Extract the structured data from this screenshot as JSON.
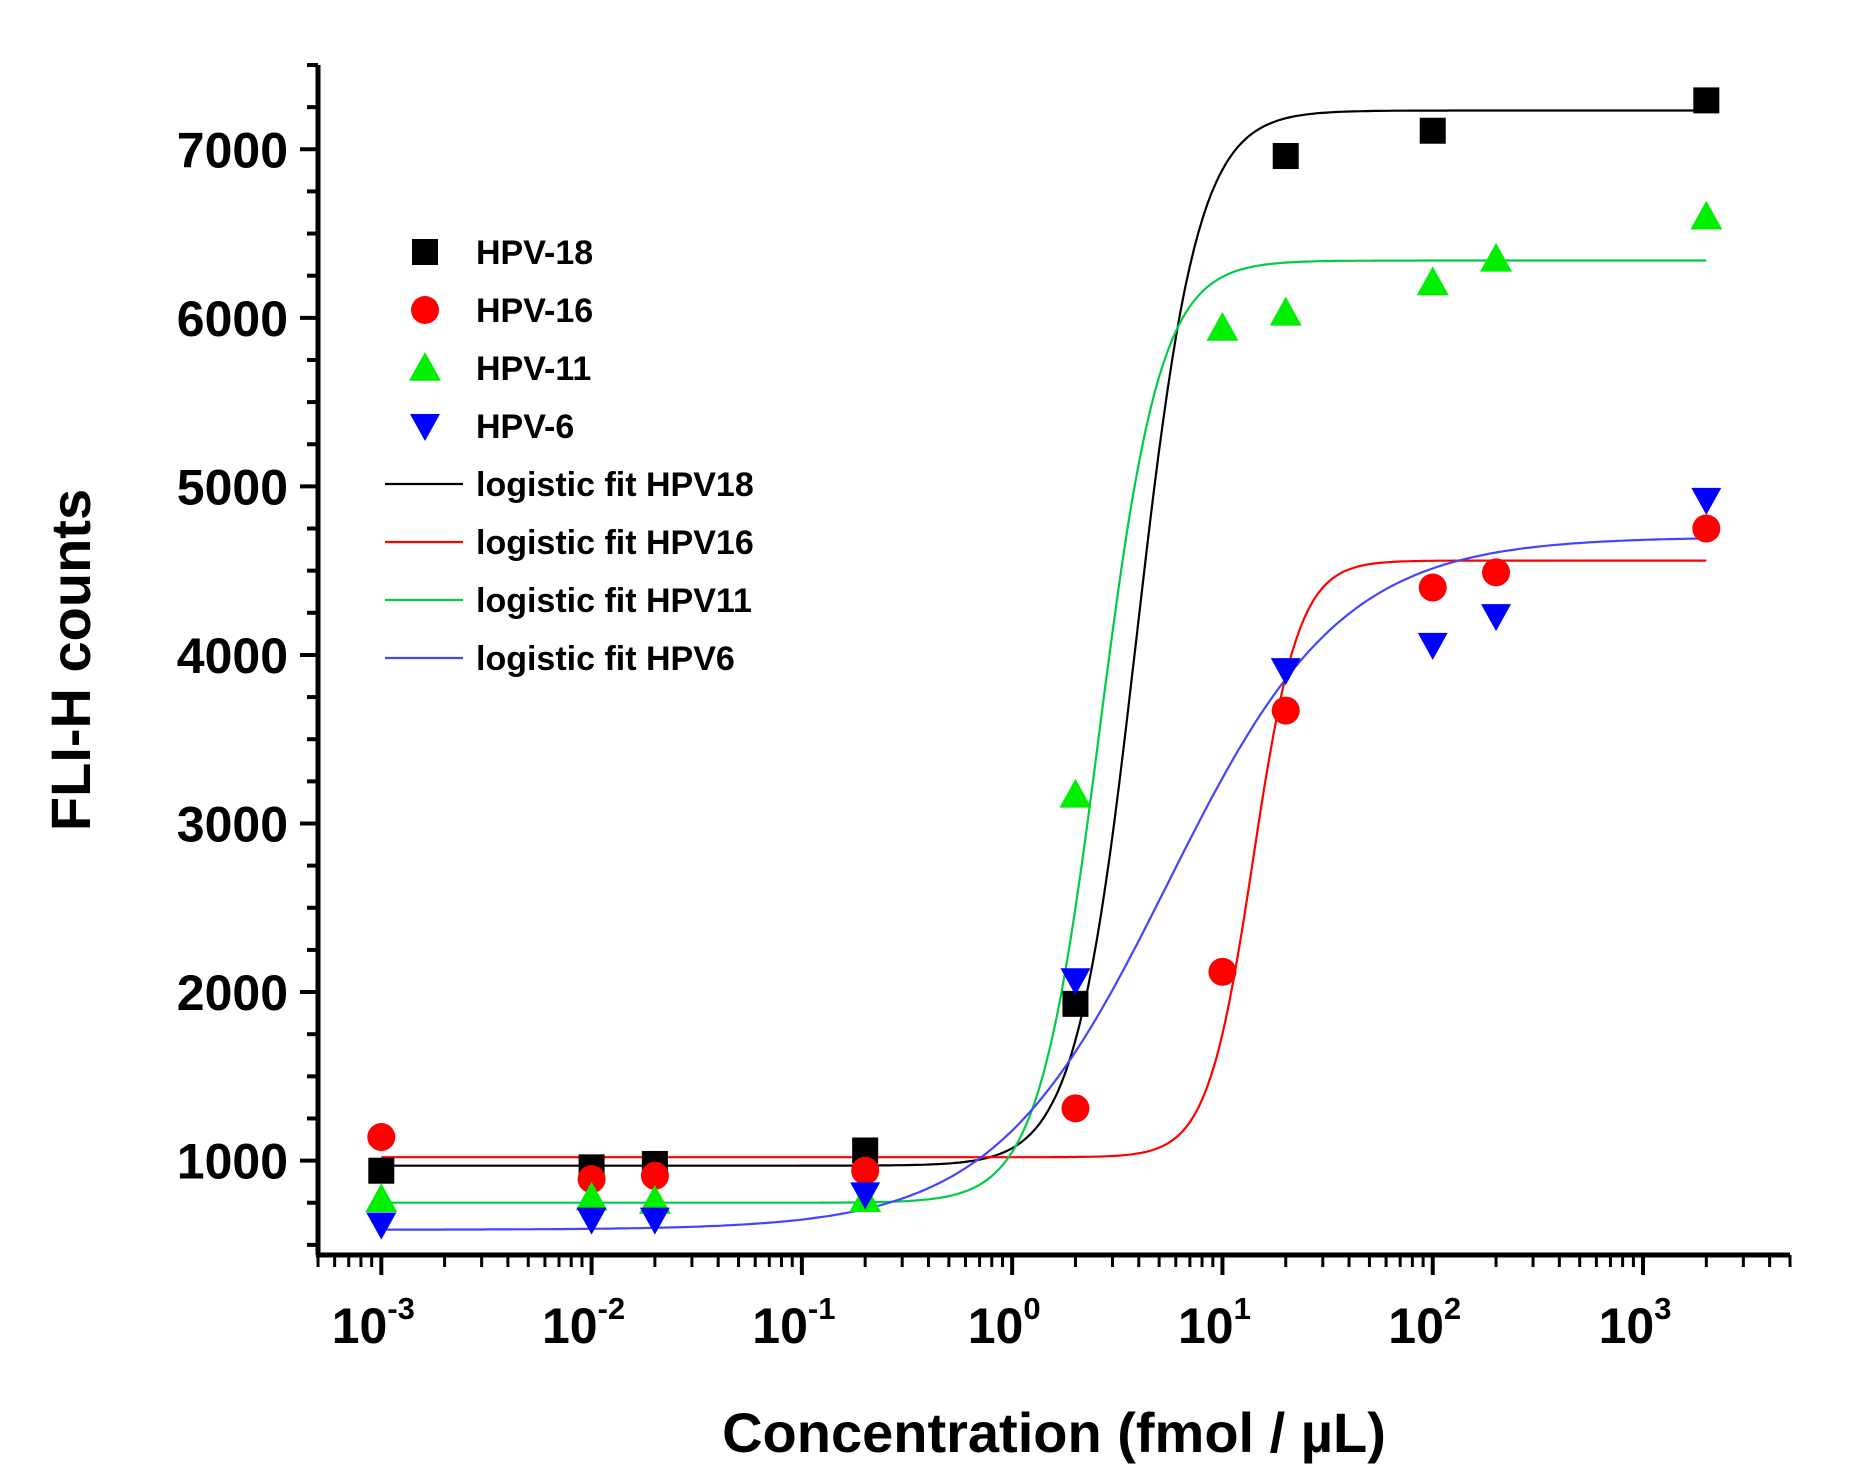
{
  "chart_data": {
    "type": "scatter",
    "title": "",
    "xlabel": "Concentration (fmol / µL)",
    "ylabel": "FLI-H counts",
    "xscale": "log",
    "xlim": [
      0.0005,
      5000
    ],
    "ylim": [
      440,
      7500
    ],
    "x_tick_labels": [
      {
        "base": "10",
        "exp": "-3",
        "value": 0.001
      },
      {
        "base": "10",
        "exp": "-2",
        "value": 0.01
      },
      {
        "base": "10",
        "exp": "-1",
        "value": 0.1
      },
      {
        "base": "10",
        "exp": "0",
        "value": 1
      },
      {
        "base": "10",
        "exp": "1",
        "value": 10
      },
      {
        "base": "10",
        "exp": "2",
        "value": 100
      },
      {
        "base": "10",
        "exp": "3",
        "value": 1000
      }
    ],
    "y_tick_labels": [
      "1000",
      "2000",
      "3000",
      "4000",
      "5000",
      "6000",
      "7000"
    ],
    "y_ticks": [
      1000,
      2000,
      3000,
      4000,
      5000,
      6000,
      7000
    ],
    "legend_position": "upper-left",
    "series": [
      {
        "name": "HPV-18",
        "marker": "square",
        "color": "#000000",
        "x": [
          0.001,
          0.01,
          0.02,
          0.2,
          2,
          20,
          100,
          2000
        ],
        "y": [
          940,
          960,
          980,
          1060,
          1930,
          6960,
          7110,
          7290
        ]
      },
      {
        "name": "HPV-16",
        "marker": "circle",
        "color": "#ff0000",
        "x": [
          0.001,
          0.01,
          0.02,
          0.2,
          2,
          10,
          20,
          100,
          200,
          2000
        ],
        "y": [
          1140,
          890,
          910,
          940,
          1310,
          2120,
          3670,
          4400,
          4490,
          4750
        ]
      },
      {
        "name": "HPV-11",
        "marker": "triangle-up",
        "color": "#00ee00",
        "x": [
          0.001,
          0.01,
          0.02,
          0.2,
          2,
          10,
          20,
          100,
          200,
          2000
        ],
        "y": [
          770,
          780,
          760,
          770,
          3170,
          5940,
          6030,
          6210,
          6350,
          6600
        ]
      },
      {
        "name": "HPV-6",
        "marker": "triangle-down",
        "color": "#0000ff",
        "x": [
          0.001,
          0.01,
          0.02,
          0.2,
          2,
          20,
          100,
          200,
          2000
        ],
        "y": [
          620,
          650,
          650,
          800,
          2070,
          3910,
          4060,
          4230,
          4920
        ]
      }
    ],
    "fits": [
      {
        "name": "logistic fit HPV18",
        "color": "#000000",
        "A1": 970,
        "A2": 7230,
        "x0": 3.9,
        "p": 3.0
      },
      {
        "name": "logistic fit HPV16",
        "color": "#ff0000",
        "A1": 1020,
        "A2": 4560,
        "x0": 14,
        "p": 4.0
      },
      {
        "name": "logistic fit HPV11",
        "color": "#00cc44",
        "A1": 750,
        "A2": 6340,
        "x0": 2.6,
        "p": 3.0
      },
      {
        "name": "logistic fit HPV6",
        "color": "#4444ff",
        "A1": 590,
        "A2": 4700,
        "x0": 5.5,
        "p": 1.05
      }
    ]
  }
}
